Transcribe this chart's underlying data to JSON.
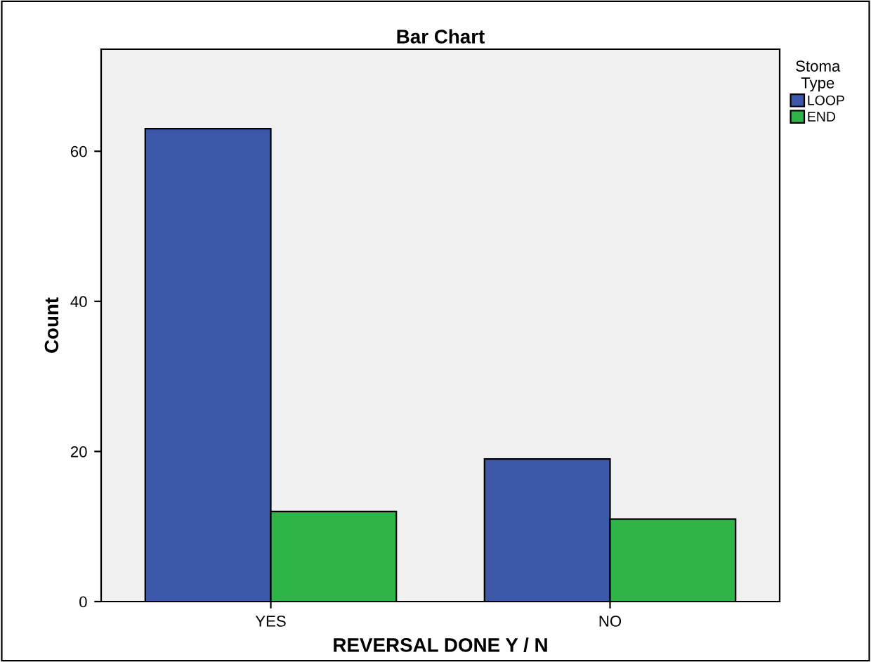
{
  "chart_data": {
    "type": "bar",
    "title": "Bar Chart",
    "xlabel": "REVERSAL DONE Y / N",
    "ylabel": "Count",
    "legend_title": "Stoma\nType",
    "categories": [
      "YES",
      "NO"
    ],
    "series": [
      {
        "name": "LOOP",
        "color": "#3d57a9",
        "values": [
          63,
          19
        ]
      },
      {
        "name": "END",
        "color": "#2fb447",
        "values": [
          12,
          11
        ]
      }
    ],
    "ylim": [
      0,
      73.6
    ],
    "yticks": [
      0,
      20,
      40,
      60
    ],
    "grid": false,
    "legend": "top right"
  }
}
